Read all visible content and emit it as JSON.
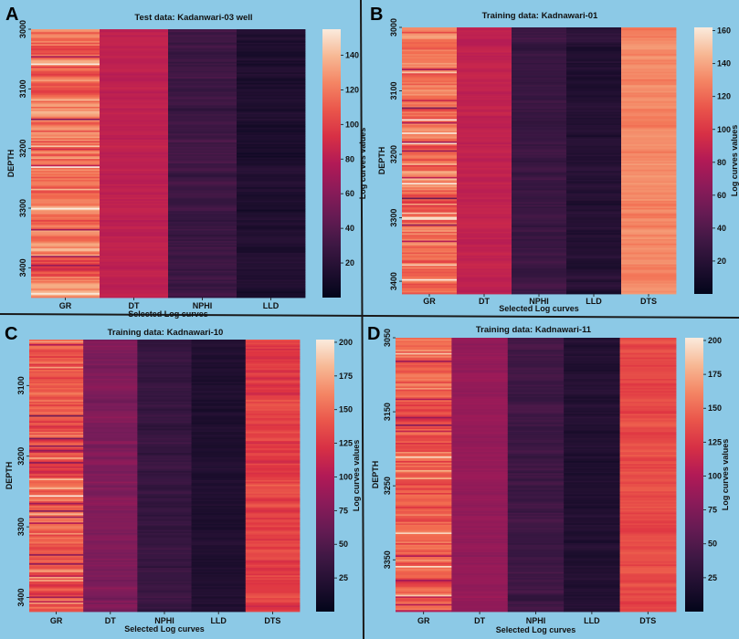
{
  "figure": {
    "background": "#8cc9e6",
    "divider_color": "#1a1a1a"
  },
  "chart_data": [
    {
      "type": "heatmap",
      "panel_label": "A",
      "title": "Test data: Kadanwari-03 well",
      "xlabel": "Selected Log curves",
      "ylabel": "DEPTH",
      "colorbar_label": "Log curves values",
      "categories": [
        "GR",
        "DT",
        "NPHI",
        "LLD"
      ],
      "depth_range": [
        3000,
        3450
      ],
      "depth_ticks": [
        3000,
        3100,
        3200,
        3300,
        3400
      ],
      "vmin": 0,
      "vmax": 155,
      "colorbar_ticks": [
        20,
        40,
        60,
        80,
        100,
        120,
        140
      ],
      "column_levels": [
        {
          "name": "GR",
          "mean": 118,
          "spread": 30
        },
        {
          "name": "DT",
          "mean": 82,
          "spread": 6
        },
        {
          "name": "NPHI",
          "mean": 30,
          "spread": 9
        },
        {
          "name": "LLD",
          "mean": 15,
          "spread": 8
        }
      ]
    },
    {
      "type": "heatmap",
      "panel_label": "B",
      "title": "Training data: Kadnawari-01",
      "xlabel": "Selected Log curves",
      "ylabel": "DEPTH",
      "colorbar_label": "Log curves values",
      "categories": [
        "GR",
        "DT",
        "NPHI",
        "LLD",
        "DTS"
      ],
      "depth_range": [
        3000,
        3420
      ],
      "depth_ticks": [
        3000,
        3100,
        3200,
        3300,
        3400
      ],
      "vmin": 0,
      "vmax": 162,
      "colorbar_ticks": [
        20,
        40,
        60,
        80,
        100,
        120,
        140,
        160
      ],
      "column_levels": [
        {
          "name": "GR",
          "mean": 122,
          "spread": 30
        },
        {
          "name": "DT",
          "mean": 87,
          "spread": 6
        },
        {
          "name": "NPHI",
          "mean": 30,
          "spread": 8
        },
        {
          "name": "LLD",
          "mean": 18,
          "spread": 9
        },
        {
          "name": "DTS",
          "mean": 130,
          "spread": 10
        }
      ]
    },
    {
      "type": "heatmap",
      "panel_label": "C",
      "title": "Training data: Kadnawari-10",
      "xlabel": "Selected Log curves",
      "ylabel": "DEPTH",
      "colorbar_label": "Log curves values",
      "categories": [
        "GR",
        "DT",
        "NPHI",
        "LLD",
        "DTS"
      ],
      "depth_range": [
        3035,
        3420
      ],
      "depth_ticks": [
        3100,
        3200,
        3300,
        3400
      ],
      "vmin": 0,
      "vmax": 202,
      "colorbar_ticks": [
        25,
        50,
        75,
        100,
        125,
        150,
        175,
        200
      ],
      "column_levels": [
        {
          "name": "GR",
          "mean": 140,
          "spread": 35
        },
        {
          "name": "DT",
          "mean": 75,
          "spread": 12
        },
        {
          "name": "NPHI",
          "mean": 35,
          "spread": 10
        },
        {
          "name": "LLD",
          "mean": 20,
          "spread": 8
        },
        {
          "name": "DTS",
          "mean": 130,
          "spread": 18
        }
      ]
    },
    {
      "type": "heatmap",
      "panel_label": "D",
      "title": "Training data: Kadnawari-11",
      "xlabel": "Selected Log curves",
      "ylabel": "DEPTH",
      "colorbar_label": "Log curves values",
      "categories": [
        "GR",
        "DT",
        "NPHI",
        "LLD",
        "DTS"
      ],
      "depth_range": [
        3050,
        3420
      ],
      "depth_ticks": [
        3050,
        3150,
        3250,
        3350
      ],
      "vmin": 0,
      "vmax": 202,
      "colorbar_ticks": [
        25,
        50,
        75,
        100,
        125,
        150,
        175,
        200
      ],
      "column_levels": [
        {
          "name": "GR",
          "mean": 145,
          "spread": 28
        },
        {
          "name": "DT",
          "mean": 85,
          "spread": 8
        },
        {
          "name": "NPHI",
          "mean": 40,
          "spread": 10
        },
        {
          "name": "LLD",
          "mean": 22,
          "spread": 9
        },
        {
          "name": "DTS",
          "mean": 135,
          "spread": 12
        }
      ]
    }
  ]
}
